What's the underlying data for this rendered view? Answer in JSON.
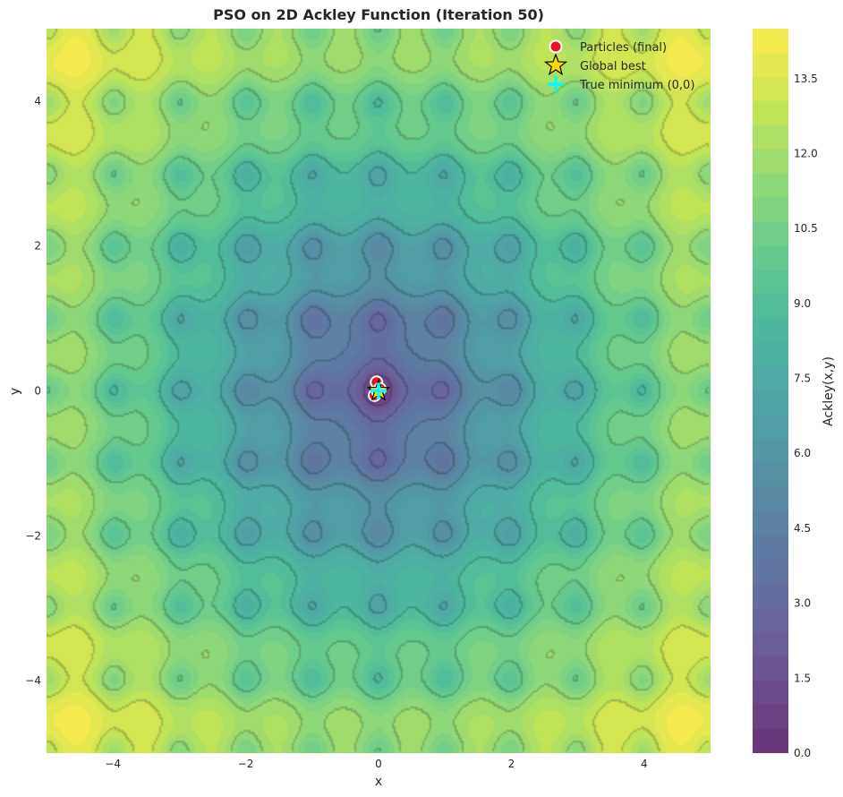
{
  "chart_data": {
    "type": "contour",
    "title": "PSO on 2D Ackley Function (Iteration 50)",
    "xlabel": "x",
    "ylabel": "y",
    "xlim": [
      -5,
      5
    ],
    "ylim": [
      -5,
      5
    ],
    "x_ticks": [
      -4,
      -2,
      0,
      2,
      4
    ],
    "y_ticks": [
      -4,
      -2,
      0,
      2,
      4
    ],
    "x_tick_labels": [
      "−4",
      "−2",
      "0",
      "2",
      "4"
    ],
    "y_tick_labels": [
      "−4",
      "−2",
      "0",
      "2",
      "4"
    ],
    "grid": false,
    "colormap": "viridis",
    "colorbar": {
      "label": "Ackley(x,y)",
      "range": [
        0,
        14.5
      ],
      "ticks": [
        0.0,
        1.5,
        3.0,
        4.5,
        6.0,
        7.5,
        9.0,
        10.5,
        12.0,
        13.5
      ],
      "tick_labels": [
        "0.0",
        "1.5",
        "3.0",
        "4.5",
        "6.0",
        "7.5",
        "9.0",
        "10.5",
        "12.0",
        "13.5"
      ]
    },
    "legend": {
      "placement": "top-right",
      "entries": [
        "Particles (final)",
        "Global best",
        "True minimum (0,0)"
      ]
    },
    "series": [
      {
        "name": "Particles (final)",
        "marker": "circle",
        "color": "#e8141c",
        "points": [
          {
            "x": -0.03,
            "y": 0.12
          },
          {
            "x": -0.06,
            "y": -0.06
          },
          {
            "x": 0.02,
            "y": 0.03
          },
          {
            "x": -0.01,
            "y": -0.01
          }
        ]
      },
      {
        "name": "Global best",
        "marker": "star",
        "color": "#ffd700",
        "points": [
          {
            "x": 0.0,
            "y": 0.0
          }
        ]
      },
      {
        "name": "True minimum (0,0)",
        "marker": "plus",
        "color": "#00ffff",
        "points": [
          {
            "x": 0.0,
            "y": 0.0
          }
        ]
      }
    ]
  }
}
